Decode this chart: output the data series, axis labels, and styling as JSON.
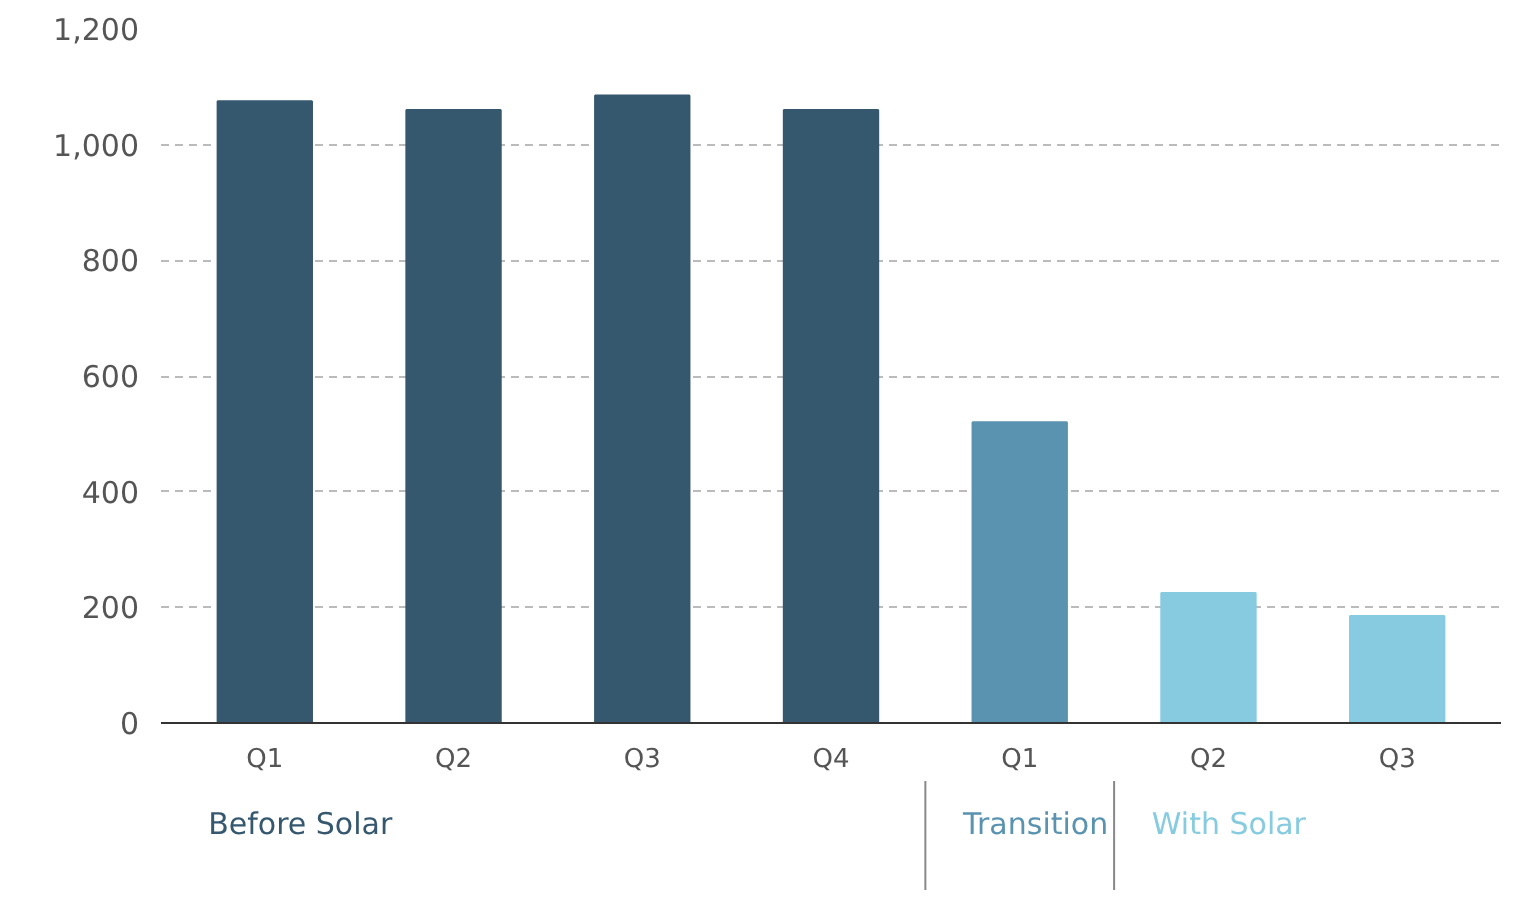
{
  "chart_data": {
    "type": "bar",
    "categories": [
      "Q1",
      "Q2",
      "Q3",
      "Q4",
      "Q1",
      "Q2",
      "Q3"
    ],
    "values": [
      1075,
      1060,
      1085,
      1060,
      520,
      225,
      185
    ],
    "colors": [
      "#36586f",
      "#36586f",
      "#36586f",
      "#36586f",
      "#5a93b0",
      "#86cbe0",
      "#86cbe0"
    ],
    "ylim": [
      0,
      1200
    ],
    "yticks": [
      0,
      200,
      400,
      600,
      800,
      {
        "value": 1000,
        "label": "1,000"
      },
      {
        "value": 1200,
        "label": "1,200"
      }
    ],
    "grid": "y",
    "annotations": [
      "Before Solar",
      "Transition",
      "With Solar"
    ]
  }
}
